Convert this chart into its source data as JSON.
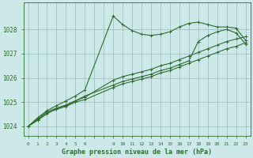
{
  "title": "Graphe pression niveau de la mer (hPa)",
  "bg_color": "#cce8e8",
  "grid_color": "#99bbbb",
  "line_color": "#2d6e2d",
  "x_ticks": [
    0,
    1,
    2,
    3,
    4,
    5,
    6,
    9,
    10,
    11,
    12,
    13,
    14,
    15,
    16,
    17,
    18,
    19,
    20,
    21,
    22,
    23
  ],
  "xlim": [
    -0.5,
    23.5
  ],
  "ylim": [
    1023.6,
    1029.1
  ],
  "yticks": [
    1024,
    1025,
    1026,
    1027,
    1028
  ],
  "series": [
    {
      "x": [
        0,
        1,
        2,
        3,
        4,
        5,
        6,
        9,
        10,
        11,
        12,
        13,
        14,
        15,
        16,
        17,
        18,
        19,
        20,
        21,
        22,
        23
      ],
      "y": [
        1024.0,
        1024.35,
        1024.65,
        1024.85,
        1025.05,
        1025.25,
        1025.5,
        1028.55,
        1028.2,
        1027.95,
        1027.8,
        1027.75,
        1027.8,
        1027.9,
        1028.1,
        1028.25,
        1028.3,
        1028.2,
        1028.1,
        1028.1,
        1028.05,
        1027.55
      ],
      "marker": "+"
    },
    {
      "x": [
        0,
        1,
        2,
        3,
        4,
        5,
        6,
        9,
        10,
        11,
        12,
        13,
        14,
        15,
        16,
        17,
        18,
        19,
        20,
        21,
        22,
        23
      ],
      "y": [
        1024.0,
        1024.3,
        1024.6,
        1024.75,
        1024.88,
        1025.05,
        1025.2,
        1025.9,
        1026.05,
        1026.15,
        1026.25,
        1026.35,
        1026.5,
        1026.6,
        1026.75,
        1026.9,
        1027.05,
        1027.2,
        1027.35,
        1027.5,
        1027.6,
        1027.7
      ],
      "marker": "+"
    },
    {
      "x": [
        0,
        1,
        2,
        3,
        4,
        5,
        6,
        9,
        10,
        11,
        12,
        13,
        14,
        15,
        16,
        17,
        18,
        19,
        20,
        21,
        22,
        23
      ],
      "y": [
        1024.0,
        1024.25,
        1024.55,
        1024.7,
        1024.82,
        1025.0,
        1025.1,
        1025.6,
        1025.75,
        1025.85,
        1025.95,
        1026.05,
        1026.2,
        1026.3,
        1026.45,
        1026.6,
        1026.75,
        1026.9,
        1027.05,
        1027.2,
        1027.3,
        1027.45
      ],
      "marker": "+"
    },
    {
      "x": [
        0,
        1,
        2,
        3,
        4,
        5,
        6,
        9,
        10,
        11,
        12,
        13,
        14,
        15,
        16,
        17,
        18,
        19,
        20,
        21,
        22,
        23
      ],
      "y": [
        1024.0,
        1024.25,
        1024.52,
        1024.72,
        1024.85,
        1025.05,
        1025.25,
        1025.7,
        1025.85,
        1025.95,
        1026.05,
        1026.15,
        1026.3,
        1026.4,
        1026.55,
        1026.7,
        1027.5,
        1027.75,
        1027.9,
        1028.0,
        1027.85,
        1027.4
      ],
      "marker": "+"
    }
  ]
}
